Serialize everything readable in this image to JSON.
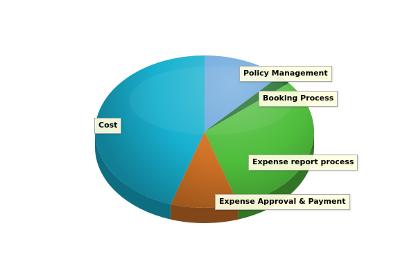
{
  "chart_data": {
    "type": "pie",
    "style": "3d",
    "title": "",
    "slices": [
      {
        "label": "Policy Management",
        "value": 12,
        "color": "#6aa6dc"
      },
      {
        "label": "Booking Process",
        "value": 2,
        "color": "#1b6b2a"
      },
      {
        "label": "Expense report process",
        "value": 31,
        "color": "#4fbd3c"
      },
      {
        "label": "Expense Approval & Payment",
        "value": 10,
        "color": "#d07226"
      },
      {
        "label": "Cost",
        "value": 45,
        "color": "#17b1d0"
      }
    ]
  }
}
